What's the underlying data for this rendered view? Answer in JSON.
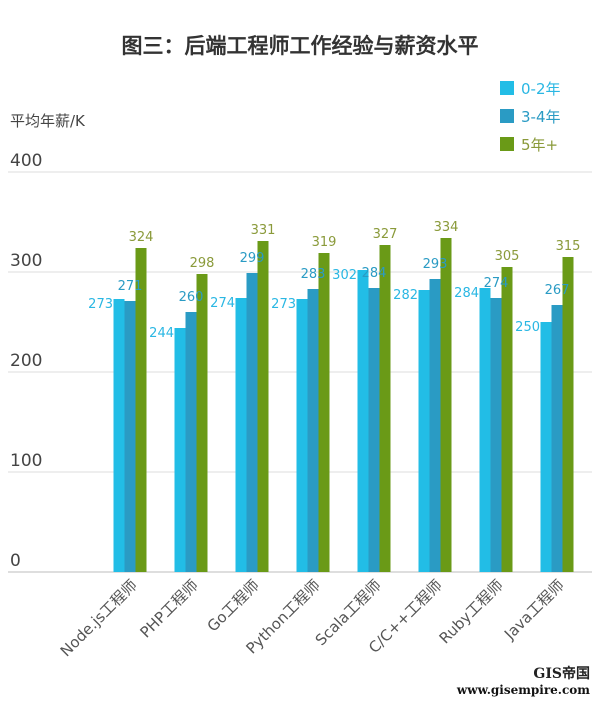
{
  "chart_data": {
    "type": "bar",
    "title": "图三：后端工程师工作经验与薪资水平",
    "ylabel": "平均年薪/K",
    "ylim": [
      0,
      400
    ],
    "yticks": [
      "0",
      "100",
      "200",
      "300",
      "400"
    ],
    "grid": true,
    "legend_position": "top-right",
    "categories": [
      "Node.js工程师",
      "PHP工程师",
      "Go工程师",
      "Python工程师",
      "Scala工程师",
      "C/C++工程师",
      "Ruby工程师",
      "Java工程师"
    ],
    "series": [
      {
        "name": "0-2年",
        "color": "#22bde6",
        "label_color": "#2ab7e3",
        "values": [
          273,
          244,
          274,
          273,
          302,
          282,
          284,
          250
        ]
      },
      {
        "name": "3-4年",
        "color": "#2a9bc4",
        "label_color": "#2a9bc4",
        "values": [
          271,
          260,
          299,
          283,
          284,
          293,
          274,
          267
        ]
      },
      {
        "name": "5年+",
        "color": "#6a9a17",
        "label_color": "#8a9a3a",
        "values": [
          324,
          298,
          331,
          319,
          327,
          334,
          305,
          315
        ]
      }
    ]
  },
  "watermark": {
    "logo": "GIS帝国",
    "url": "www.gisempire.com"
  }
}
